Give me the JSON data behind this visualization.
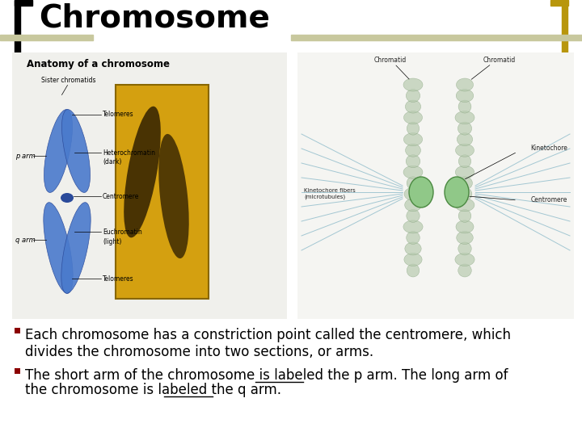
{
  "title": "Chromosome",
  "title_fontsize": 28,
  "title_fontweight": "bold",
  "title_color": "#000000",
  "background_color": "#ffffff",
  "bullet1": "Each chromosome has a constriction point called the centromere, which\ndivides the chromosome into two sections, or arms.",
  "bullet2_pre": "The short arm of the chromosome is labeled ",
  "bullet2_ul1": "the p arm",
  "bullet2_mid": ". The long arm of\nthe chromosome is labeled ",
  "bullet2_ul2": "the q arm",
  "bullet2_post": ".",
  "bracket_color_left": "#000000",
  "bracket_color_right": "#b8960c",
  "header_stripe_color": "#c8c89e",
  "bullet_color": "#8b0000",
  "bullet_fontsize": 12
}
